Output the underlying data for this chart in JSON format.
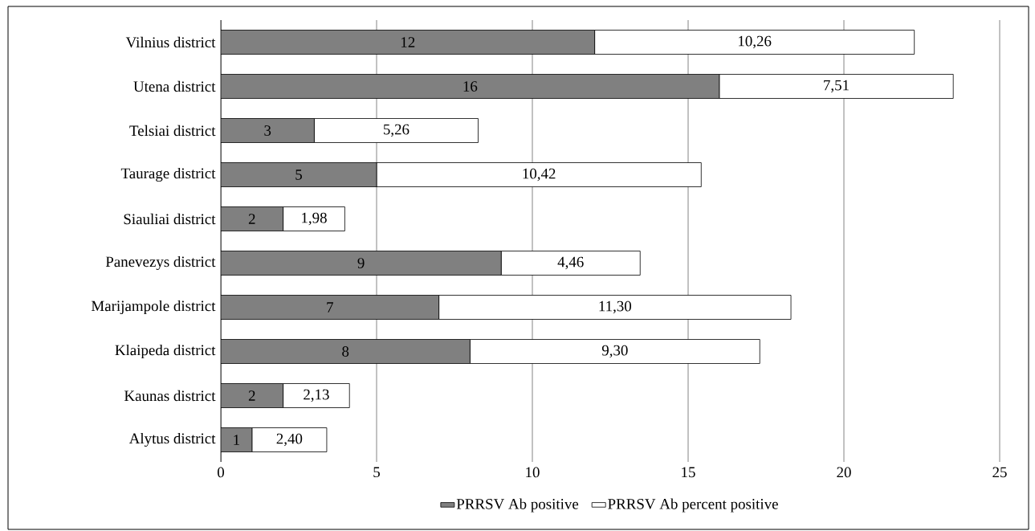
{
  "chart_data": {
    "type": "bar",
    "orientation": "horizontal",
    "stacked": true,
    "categories": [
      "Vilnius district",
      "Utena district",
      "Telsiai district",
      "Taurage district",
      "Siauliai district",
      "Panevezys district",
      "Marijampole district",
      "Klaipeda district",
      "Kaunas district",
      "Alytus district"
    ],
    "series": [
      {
        "name": "PRRSV Ab positive",
        "color": "#808080",
        "values": [
          12,
          16,
          3,
          5,
          2,
          9,
          7,
          8,
          2,
          1
        ],
        "value_labels": [
          "12",
          "16",
          "3",
          "5",
          "2",
          "9",
          "7",
          "8",
          "2",
          "1"
        ]
      },
      {
        "name": "PRRSV Ab percent positive",
        "color": "#ffffff",
        "values": [
          10.26,
          7.51,
          5.26,
          10.42,
          1.98,
          4.46,
          11.3,
          9.3,
          2.13,
          2.4
        ],
        "value_labels": [
          "10,26",
          "7,51",
          "5,26",
          "10,42",
          "1,98",
          "4,46",
          "11,30",
          "9,30",
          "2,13",
          "2,40"
        ]
      }
    ],
    "xlim": [
      0,
      25
    ],
    "xticks": [
      0,
      5,
      10,
      15,
      20,
      25
    ],
    "grid": "x",
    "legend": "bottom"
  }
}
